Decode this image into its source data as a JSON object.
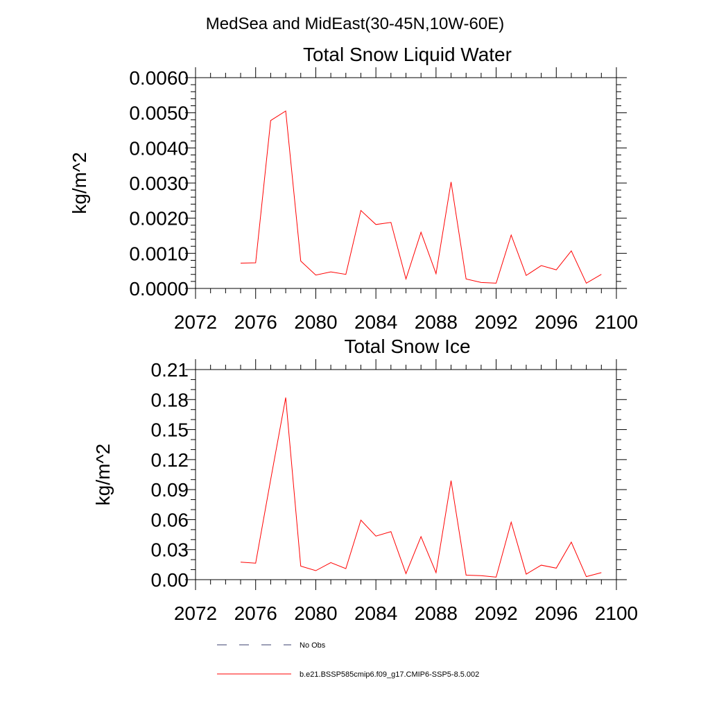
{
  "figure": {
    "title": "MedSea and MidEast(30-45N,10W-60E)"
  },
  "chart_data": [
    {
      "type": "line",
      "title": "Total Snow Liquid Water",
      "xlabel": "",
      "ylabel": "kg/m^2",
      "xlim": [
        2072,
        2100
      ],
      "ylim": [
        0,
        0.006
      ],
      "x_ticks": [
        2072,
        2076,
        2080,
        2084,
        2088,
        2092,
        2096,
        2100
      ],
      "x_tick_labels": [
        "2072",
        "2076",
        "2080",
        "2084",
        "2088",
        "2092",
        "2096",
        "2100"
      ],
      "y_ticks": [
        0,
        0.001,
        0.002,
        0.003,
        0.004,
        0.005,
        0.006
      ],
      "y_tick_labels": [
        "0.0000",
        "0.0010",
        "0.0020",
        "0.0030",
        "0.0040",
        "0.0050",
        "0.0060"
      ],
      "x_minor_step": 1,
      "y_minor_step": 0.0002,
      "grid": false,
      "series": [
        {
          "name": "b.e21.BSSP585cmip6.f09_g17.CMIP6-SSP5-8.5.002",
          "color": "#ff0000",
          "x": [
            2075,
            2076,
            2077,
            2078,
            2079,
            2080,
            2081,
            2082,
            2083,
            2084,
            2085,
            2086,
            2087,
            2088,
            2089,
            2090,
            2091,
            2092,
            2093,
            2094,
            2095,
            2096,
            2097,
            2098,
            2099
          ],
          "y": [
            0.00072,
            0.00073,
            0.00478,
            0.00505,
            0.00078,
            0.00038,
            0.00047,
            0.0004,
            0.00222,
            0.00182,
            0.00188,
            0.00027,
            0.0016,
            0.00042,
            0.00303,
            0.00027,
            0.00017,
            0.00015,
            0.00152,
            0.00037,
            0.00065,
            0.00053,
            0.00107,
            0.00015,
            0.0004
          ]
        }
      ]
    },
    {
      "type": "line",
      "title": "Total Snow Ice",
      "xlabel": "",
      "ylabel": "kg/m^2",
      "xlim": [
        2072,
        2100
      ],
      "ylim": [
        0,
        0.21
      ],
      "x_ticks": [
        2072,
        2076,
        2080,
        2084,
        2088,
        2092,
        2096,
        2100
      ],
      "x_tick_labels": [
        "2072",
        "2076",
        "2080",
        "2084",
        "2088",
        "2092",
        "2096",
        "2100"
      ],
      "y_ticks": [
        0,
        0.03,
        0.06,
        0.09,
        0.12,
        0.15,
        0.18,
        0.21
      ],
      "y_tick_labels": [
        "0.00",
        "0.03",
        "0.06",
        "0.09",
        "0.12",
        "0.15",
        "0.18",
        "0.21"
      ],
      "x_minor_step": 1,
      "y_minor_step": 0.01,
      "grid": false,
      "series": [
        {
          "name": "b.e21.BSSP585cmip6.f09_g17.CMIP6-SSP5-8.5.002",
          "color": "#ff0000",
          "x": [
            2075,
            2076,
            2077,
            2078,
            2079,
            2080,
            2081,
            2082,
            2083,
            2084,
            2085,
            2086,
            2087,
            2088,
            2089,
            2090,
            2091,
            2092,
            2093,
            2094,
            2095,
            2096,
            2097,
            2098,
            2099
          ],
          "y": [
            0.0175,
            0.0165,
            0.1,
            0.182,
            0.0135,
            0.009,
            0.017,
            0.011,
            0.0595,
            0.0435,
            0.048,
            0.006,
            0.043,
            0.007,
            0.099,
            0.0045,
            0.004,
            0.0025,
            0.0575,
            0.0055,
            0.0145,
            0.0115,
            0.0375,
            0.003,
            0.007
          ]
        }
      ]
    }
  ],
  "legend": {
    "placement": "bottom-left",
    "entries": [
      {
        "label": "No Obs",
        "color": "#3a3f6e",
        "style": "dashed"
      },
      {
        "label": "b.e21.BSSP585cmip6.f09_g17.CMIP6-SSP5-8.5.002",
        "color": "#ff0000",
        "style": "solid"
      }
    ]
  }
}
